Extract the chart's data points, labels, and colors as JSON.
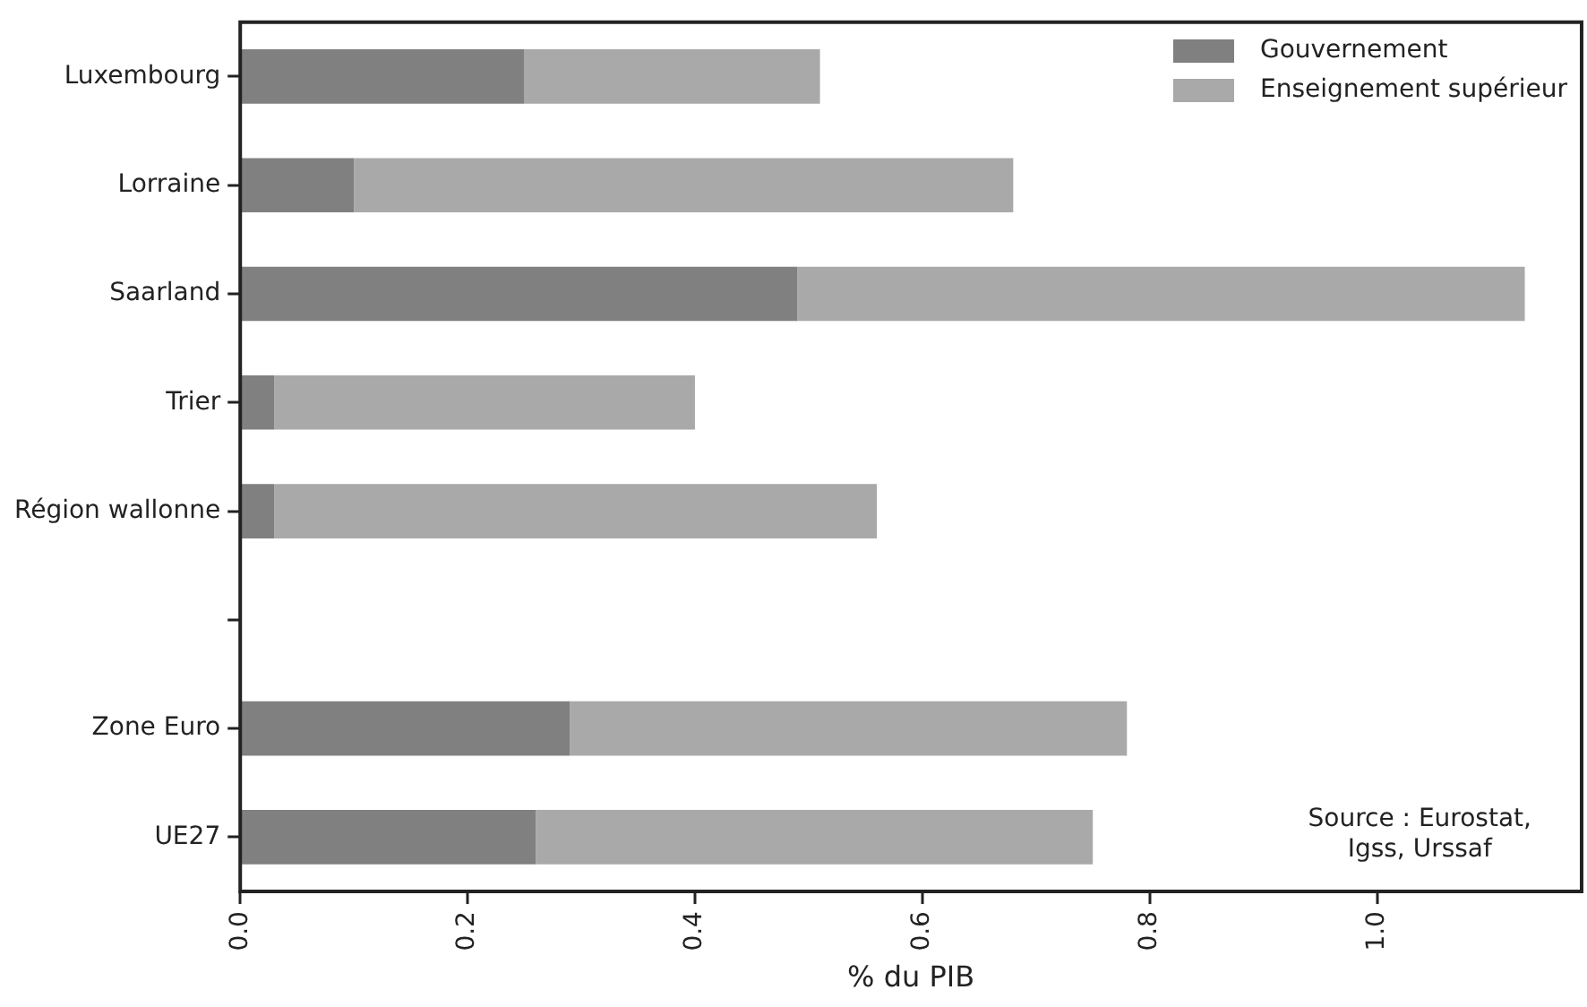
{
  "chart_data": {
    "type": "bar",
    "orientation": "horizontal",
    "stacked": true,
    "categories": [
      "Luxembourg",
      "Lorraine",
      "Saarland",
      "Trier",
      "Région wallonne",
      null,
      "Zone Euro",
      "UE27"
    ],
    "series": [
      {
        "name": "Gouvernement",
        "color": "#808080",
        "values": [
          0.25,
          0.1,
          0.49,
          0.03,
          0.03,
          null,
          0.29,
          0.26
        ]
      },
      {
        "name": "Enseignement supérieur",
        "color": "#a9a9a9",
        "values": [
          0.26,
          0.58,
          0.64,
          0.37,
          0.53,
          null,
          0.49,
          0.49
        ]
      }
    ],
    "xlabel": "% du PIB",
    "xlim": [
      0,
      1.18
    ],
    "xticks": [
      {
        "value": 0,
        "label": "0.0"
      },
      0.2,
      0.4,
      0.6,
      0.8,
      {
        "value": 1,
        "label": "1.0"
      }
    ],
    "legend": "top right",
    "grid": false,
    "annotations": [
      "Source : Eurostat,\nIgss, Urssaf"
    ]
  }
}
